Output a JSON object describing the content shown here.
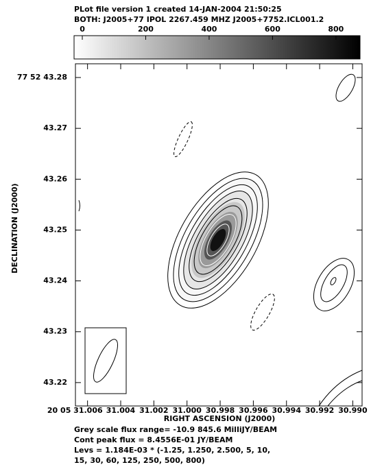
{
  "header": {
    "line1": "PLot file version 1  created 14-JAN-2004 21:50:25",
    "line2": "BOTH: J2005+77  IPOL  2267.459 MHZ  J2005+7752.ICL001.2"
  },
  "colorbar": {
    "lim": [
      -26,
      876
    ],
    "ticks": [
      0,
      200,
      400,
      600,
      800
    ]
  },
  "plot": {
    "xlabel": "RIGHT ASCENSION (J2000)",
    "ylabel": "DECLINATION (J2000)",
    "xlim": [
      31.00673,
      30.98944
    ],
    "xticks": [
      {
        "value": 31.006,
        "label": "20 05 31.006"
      },
      31.004,
      31.002,
      {
        "value": 31.0,
        "label": "31.000"
      },
      30.998,
      30.996,
      30.994,
      30.992,
      {
        "value": 30.99,
        "label": "30.990"
      }
    ],
    "ylim": [
      43.2154,
      43.2827
    ],
    "yticks": [
      {
        "value": 43.28,
        "label": "77 52 43.28"
      },
      43.27,
      43.26,
      43.25,
      43.24,
      43.23,
      43.22
    ]
  },
  "footer": [
    "Grey scale flux range= -10.9 845.6 MilliJY/BEAM",
    "Cont peak flux =  8.4556E-01 JY/BEAM",
    "Levs = 1.184E-03 * (-1.25, 1.250, 2.500, 5, 10,",
    "15, 30, 60, 125, 250, 500, 800)"
  ]
}
